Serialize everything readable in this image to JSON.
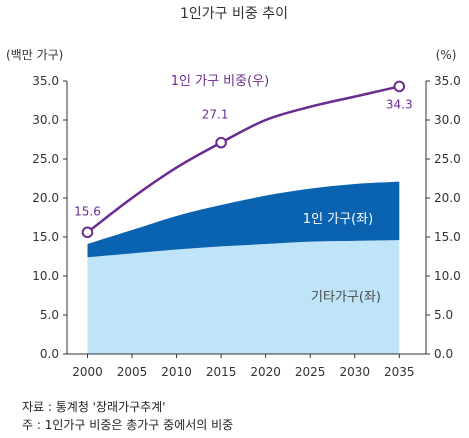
{
  "chart_data": {
    "type": "area",
    "title": "1인가구 비중 추이",
    "left_axis_unit": "(백만 가구)",
    "right_axis_unit": "(%)",
    "x": [
      2000,
      2005,
      2010,
      2015,
      2020,
      2025,
      2030,
      2035
    ],
    "xlim": [
      1997.7,
      2038
    ],
    "ylim_left": [
      0,
      35
    ],
    "ylim_right": [
      0,
      35
    ],
    "y_ticks_left": [
      "0.0",
      "5.0",
      "10.0",
      "15.0",
      "20.0",
      "25.0",
      "30.0",
      "35.0"
    ],
    "y_ticks_right": [
      "0.0",
      "5.0",
      "10.0",
      "15.0",
      "20.0",
      "25.0",
      "30.0",
      "35.0"
    ],
    "grid": false,
    "area_series": [
      {
        "name": "기타가구(좌)",
        "color": "#bfe3f7",
        "x": [
          2000,
          2005,
          2010,
          2015,
          2020,
          2025,
          2030,
          2035
        ],
        "values": [
          12.4,
          12.9,
          13.4,
          13.8,
          14.1,
          14.4,
          14.5,
          14.6
        ]
      },
      {
        "name": "1인 가구(좌)",
        "color": "#0a63b0",
        "x": [
          2000,
          2005,
          2010,
          2015,
          2020,
          2025,
          2030,
          2035
        ],
        "values": [
          1.7,
          3.0,
          4.3,
          5.3,
          6.2,
          6.8,
          7.3,
          7.5
        ]
      }
    ],
    "line_series": {
      "name": "1인 가구 비중(우)",
      "color": "#6b2c91",
      "x": [
        2000,
        2005,
        2010,
        2015,
        2020,
        2025,
        2030,
        2035
      ],
      "values": [
        15.6,
        20.0,
        23.9,
        27.1,
        30.0,
        31.7,
        33.0,
        34.3
      ],
      "labeled_points": [
        {
          "x": 2000,
          "label": "15.6"
        },
        {
          "x": 2015,
          "label": "27.1"
        },
        {
          "x": 2035,
          "label": "34.3"
        }
      ]
    }
  },
  "source_lines": [
    "자료 : 통계청 '장래가구추계'",
    "주 : 1인가구 비중은 총가구 중에서의 비중"
  ]
}
